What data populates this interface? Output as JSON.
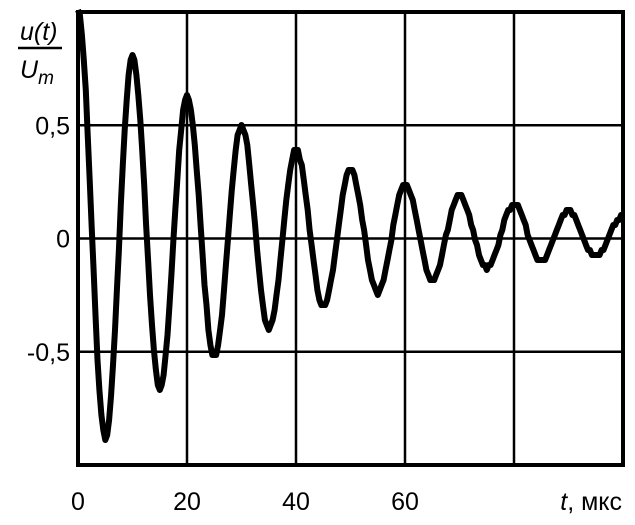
{
  "chart_data": {
    "type": "line",
    "ylabel_numerator": "u(t)",
    "ylabel_denominator_main": "U",
    "ylabel_denominator_sub": "m",
    "xlabel_var": "t",
    "xlabel_unit": ", мкс",
    "xlim": [
      0,
      100
    ],
    "ylim": [
      -1,
      1
    ],
    "grid": true,
    "x_gridlines": [
      0,
      20,
      40,
      60,
      80,
      100
    ],
    "y_gridlines": [
      -1,
      -0.5,
      0,
      0.5,
      1
    ],
    "x_tick_labels": [
      {
        "value": 0,
        "label": "0"
      },
      {
        "value": 20,
        "label": "20"
      },
      {
        "value": 40,
        "label": "40"
      },
      {
        "value": 60,
        "label": "60"
      }
    ],
    "y_tick_labels": [
      {
        "value": 0.5,
        "label": "0,5"
      },
      {
        "value": 0,
        "label": "0"
      },
      {
        "value": -0.5,
        "label": "-0,5"
      }
    ],
    "line_color": "#000000",
    "series": [
      {
        "extrema": [
          {
            "t": 0,
            "u": 1.0
          },
          {
            "t": 5,
            "u": -0.88
          },
          {
            "t": 10,
            "u": 0.8
          },
          {
            "t": 15,
            "u": -0.66
          },
          {
            "t": 20,
            "u": 0.63
          },
          {
            "t": 25,
            "u": -0.52
          },
          {
            "t": 30,
            "u": 0.5
          },
          {
            "t": 35,
            "u": -0.4
          },
          {
            "t": 40,
            "u": 0.39
          },
          {
            "t": 45,
            "u": -0.3
          },
          {
            "t": 50,
            "u": 0.3
          },
          {
            "t": 55,
            "u": -0.24
          },
          {
            "t": 60,
            "u": 0.24
          },
          {
            "t": 65,
            "u": -0.18
          },
          {
            "t": 70,
            "u": 0.19
          },
          {
            "t": 75,
            "u": -0.13
          },
          {
            "t": 80,
            "u": 0.15
          },
          {
            "t": 85,
            "u": -0.1
          },
          {
            "t": 90,
            "u": 0.12
          },
          {
            "t": 95,
            "u": -0.08
          },
          {
            "t": 100,
            "u": 0.1
          }
        ]
      }
    ]
  }
}
